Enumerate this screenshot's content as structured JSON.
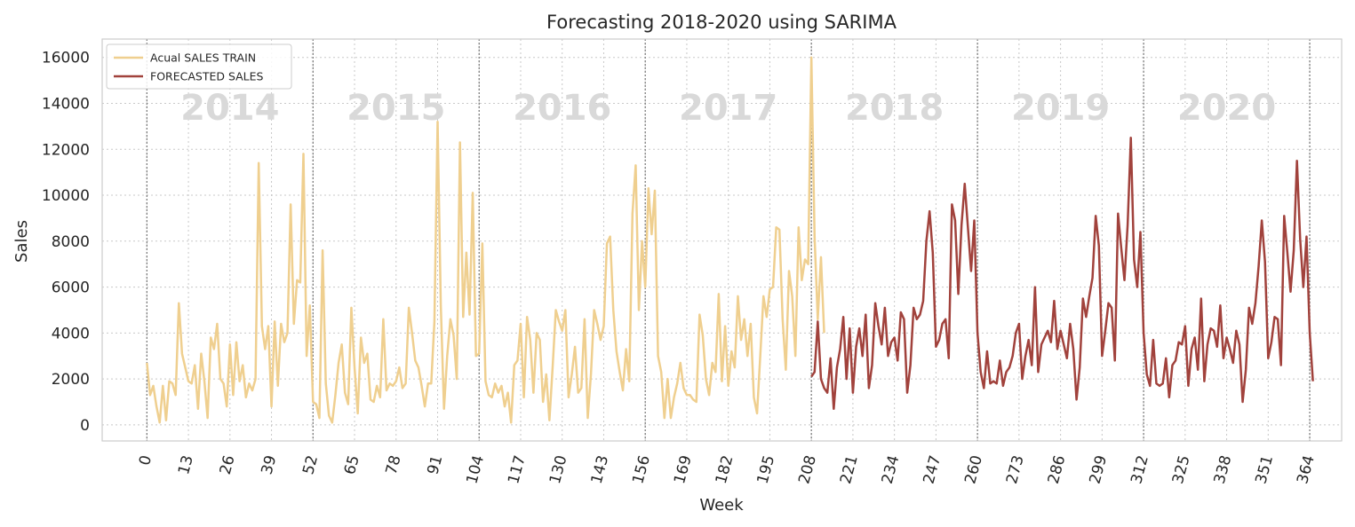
{
  "chart_data": {
    "type": "line",
    "title": "Forecasting 2018-2020 using SARIMA",
    "xlabel": "Week",
    "ylabel": "Sales",
    "xlim": [
      -14,
      374
    ],
    "ylim": [
      -700,
      16800
    ],
    "grid": true,
    "legend_position": "top-left",
    "x_ticks": [
      0,
      13,
      26,
      39,
      52,
      65,
      78,
      91,
      104,
      117,
      130,
      143,
      156,
      169,
      182,
      195,
      208,
      221,
      234,
      247,
      260,
      273,
      286,
      299,
      312,
      325,
      338,
      351,
      364
    ],
    "y_ticks": [
      0,
      2000,
      4000,
      6000,
      8000,
      10000,
      12000,
      14000,
      16000
    ],
    "year_boundaries": [
      0,
      52,
      104,
      156,
      208,
      260,
      312,
      364
    ],
    "year_labels": [
      {
        "text": "2014",
        "x": 26
      },
      {
        "text": "2015",
        "x": 78
      },
      {
        "text": "2016",
        "x": 130
      },
      {
        "text": "2017",
        "x": 182
      },
      {
        "text": "2018",
        "x": 234
      },
      {
        "text": "2019",
        "x": 286
      },
      {
        "text": "2020",
        "x": 338
      }
    ],
    "series": [
      {
        "name": "Acual SALES TRAIN",
        "color": "#efcf8f",
        "x_start": 0,
        "values": [
          2700,
          1300,
          1700,
          800,
          100,
          1700,
          200,
          1900,
          1800,
          1300,
          5300,
          3100,
          2500,
          1900,
          1800,
          2600,
          700,
          3100,
          1900,
          300,
          3800,
          3300,
          4400,
          2000,
          1800,
          800,
          3500,
          1300,
          3600,
          1900,
          2600,
          1200,
          1800,
          1500,
          2000,
          11400,
          4300,
          3300,
          4300,
          800,
          4500,
          1700,
          4400,
          3600,
          4000,
          9600,
          4400,
          6300,
          6200,
          11800,
          3000,
          5200,
          1000,
          900,
          300,
          7600,
          1800,
          400,
          100,
          1300,
          2700,
          3500,
          1400,
          900,
          5100,
          2500,
          500,
          3800,
          2700,
          3100,
          1100,
          1000,
          1700,
          1200,
          4600,
          1500,
          1800,
          1700,
          1900,
          2500,
          1600,
          1800,
          5100,
          4000,
          2800,
          2500,
          1700,
          800,
          1800,
          1800,
          4500,
          13200,
          5200,
          700,
          3000,
          4600,
          3900,
          2000,
          12300,
          4700,
          7500,
          4800,
          10100,
          3000,
          3100,
          7900,
          1900,
          1300,
          1200,
          1800,
          1400,
          1700,
          800,
          1400,
          100,
          2600,
          2800,
          4400,
          1200,
          4700,
          3700,
          1400,
          4000,
          3700,
          1000,
          2200,
          200,
          2500,
          5000,
          4500,
          4100,
          5000,
          1200,
          2200,
          3400,
          1400,
          1600,
          4600,
          300,
          2200,
          5000,
          4400,
          3700,
          4300,
          7900,
          8200,
          5000,
          3200,
          2300,
          1500,
          3300,
          1900,
          9200,
          11300,
          5000,
          8000,
          6000,
          10300,
          8300,
          10200,
          3000,
          2300,
          300,
          2000,
          300,
          1200,
          1800,
          2700,
          1600,
          1300,
          1300,
          1100,
          1000,
          4800,
          3900,
          2000,
          1300,
          2700,
          2300,
          5700,
          1900,
          4300,
          1700,
          3200,
          2500,
          5600,
          3700,
          4600,
          3000,
          4400,
          1200,
          500,
          3000,
          5600,
          4700,
          5900,
          6000,
          8600,
          8500,
          4600,
          2400,
          6700,
          5600,
          3000,
          8600,
          6300,
          7200,
          7000,
          16000,
          8200,
          4600,
          7300,
          4000
        ]
      },
      {
        "name": "FORECASTED SALES",
        "color": "#a1423c",
        "x_start": 208,
        "values": [
          2100,
          2300,
          4500,
          2000,
          1600,
          1400,
          2900,
          700,
          2500,
          3300,
          4700,
          2000,
          4200,
          1400,
          3400,
          4200,
          3000,
          4800,
          1600,
          2600,
          5300,
          4300,
          3500,
          5100,
          3000,
          3600,
          3800,
          2800,
          4900,
          4600,
          1400,
          2600,
          5100,
          4600,
          4800,
          5400,
          8000,
          9300,
          7500,
          3400,
          3700,
          4400,
          4600,
          2900,
          9600,
          8900,
          5700,
          8700,
          10500,
          8600,
          6700,
          8900,
          4000,
          2300,
          1600,
          3200,
          1800,
          1900,
          1800,
          2800,
          1700,
          2300,
          2500,
          3000,
          4000,
          4400,
          2000,
          3000,
          3700,
          2600,
          6000,
          2300,
          3500,
          3800,
          4100,
          3600,
          5400,
          3300,
          4100,
          3500,
          2900,
          4400,
          3300,
          1100,
          2500,
          5500,
          4700,
          5600,
          6400,
          9100,
          7800,
          3000,
          4100,
          5300,
          5100,
          2800,
          9200,
          7700,
          6300,
          8700,
          12500,
          7200,
          6000,
          8400,
          4000,
          2200,
          1700,
          3700,
          1800,
          1700,
          1800,
          2900,
          1200,
          2600,
          2800,
          3600,
          3500,
          4300,
          1700,
          3300,
          3800,
          2400,
          5500,
          1900,
          3500,
          4200,
          4100,
          3400,
          5200,
          2900,
          3800,
          3300,
          2700,
          4100,
          3500,
          1000,
          2400,
          5100,
          4400,
          5300,
          6900,
          8900,
          7100,
          2900,
          3600,
          4700,
          4600,
          2600,
          9100,
          7500,
          5800,
          7600,
          11500,
          8100,
          6000,
          8200,
          4000,
          1900
        ]
      }
    ]
  }
}
